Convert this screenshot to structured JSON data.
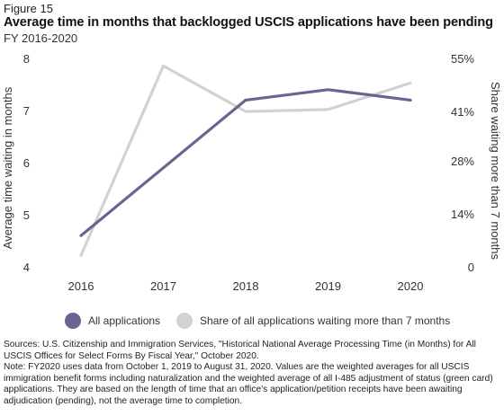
{
  "figure_label": "Figure 15",
  "title": "Average time in months that backlogged USCIS applications have been pending",
  "subtitle": "FY 2016-2020",
  "colors": {
    "all_applications": "#6b6390",
    "share_waiting": "#d2d2d2",
    "axis_text": "#333333"
  },
  "chart_data": {
    "type": "line",
    "x": [
      "2016",
      "2017",
      "2018",
      "2019",
      "2020"
    ],
    "series": [
      {
        "name": "All applications",
        "axis": "left",
        "values": [
          4.6,
          5.9,
          7.2,
          7.4,
          7.2
        ]
      },
      {
        "name": "Share of all applications waiting more than 7 months",
        "axis": "right",
        "values": [
          3,
          53,
          41,
          41.5,
          48.5
        ]
      }
    ],
    "ylabel": "Average time waiting in months",
    "ylim": [
      4,
      8
    ],
    "yticks": [
      "4",
      "5",
      "6",
      "7",
      "8"
    ],
    "y2label": "Share waiting more than 7 months",
    "y2lim": [
      0,
      55
    ],
    "y2ticks": [
      {
        "value": 0,
        "label": "0"
      },
      {
        "value": 14,
        "label": "14%"
      },
      {
        "value": 28,
        "label": "28%"
      },
      {
        "value": 41,
        "label": "41%"
      },
      {
        "value": 55,
        "label": "55%"
      }
    ],
    "grid": false,
    "legend_position": "bottom"
  },
  "notes": {
    "sources": "Sources: U.S. Citizenship and Immigration Services, \"Historical National Average Processing Time (in Months) for All USCIS Offices for Select Forms By Fiscal Year,\" October 2020.",
    "note": "Note: FY2020 uses data from October 1, 2019 to August 31, 2020. Values are the weighted averages for all USCIS immigration benefit forms including naturalization and the weighted average of all I-485 adjustment of status (green card) applications. They are based on the length of time that an office's application/petition receipts have been awaiting adjudication (pending), not the average time to completion."
  }
}
